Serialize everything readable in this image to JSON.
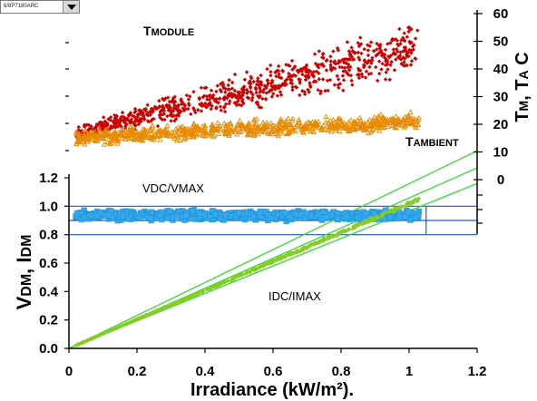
{
  "dropdown": {
    "value": "6/8P7180ARC"
  },
  "chart_data": {
    "type": "scatter",
    "x_axis": {
      "label": "Irradiance (kW/m²).",
      "range": [
        0,
        1.2
      ],
      "ticks": [
        "0",
        "0.2",
        "0.4",
        "0.6",
        "0.8",
        "1",
        "1.2"
      ]
    },
    "left_axis": {
      "label_main": "V",
      "label_sub1": "DM",
      "label_sep": ", I",
      "label_sub2": "DM",
      "range": [
        0,
        1.2
      ],
      "ticks": [
        "0.0",
        "0.2",
        "0.4",
        "0.6",
        "0.8",
        "1.0",
        "1.2"
      ]
    },
    "right_axis": {
      "label_part1": "T",
      "label_sub1": "M",
      "label_part2": ", T",
      "label_sub2": "A",
      "label_part3": " C",
      "range": [
        0,
        60
      ],
      "ticks": [
        "0",
        "10",
        "20",
        "30",
        "40",
        "50",
        "60"
      ]
    },
    "annotations": {
      "tmodule": {
        "big": "T",
        "small": "MODULE"
      },
      "tambient": {
        "big": "T",
        "small": "AMBIENT"
      },
      "vdc": {
        "big1": "V",
        "small1": "DC",
        "sep": "/V",
        "small2": "MAX"
      },
      "idc": {
        "big1": "I",
        "small1": "DC",
        "sep": "/I",
        "small2": "MAX"
      }
    },
    "reference_lines": {
      "blue_horizontal_y": [
        0.8,
        0.9,
        1.0
      ],
      "blue_vertical_x": 1.05,
      "green_lines": [
        {
          "x1": 0,
          "y1": 0,
          "x2": 1.2,
          "y2": 1.39
        },
        {
          "x1": 0,
          "y1": 0,
          "x2": 1.2,
          "y2": 1.27
        },
        {
          "x1": 0,
          "y1": 0,
          "x2": 1.2,
          "y2": 1.16
        }
      ]
    },
    "series": [
      {
        "name": "TMODULE",
        "axis": "right",
        "marker": "diamond",
        "color": "#cc0000",
        "trend": {
          "x_range": [
            0.02,
            1.03
          ],
          "y_at_start": 16,
          "slope_per_kw": 31,
          "spread": 9,
          "count": 820
        }
      },
      {
        "name": "TAMBIENT",
        "axis": "right",
        "marker": "triangle",
        "color": "#e68a00",
        "trend": {
          "x_range": [
            0.02,
            1.03
          ],
          "y_at_start": 15,
          "slope_per_kw": 6,
          "spread": 4,
          "count": 760
        }
      },
      {
        "name": "VDC/VMAX",
        "axis": "left",
        "marker": "square",
        "color": "#33aaee",
        "trend": {
          "x_range": [
            0.02,
            1.03
          ],
          "y_center": 0.935,
          "spread": 0.045,
          "count": 700
        }
      },
      {
        "name": "IDC/IMAX",
        "axis": "left",
        "marker": "diamond",
        "color": "#88cc22",
        "trend": {
          "x_range": [
            0.02,
            1.03
          ],
          "slope": 1.02,
          "spread": 0.015,
          "count": 650
        }
      }
    ]
  }
}
